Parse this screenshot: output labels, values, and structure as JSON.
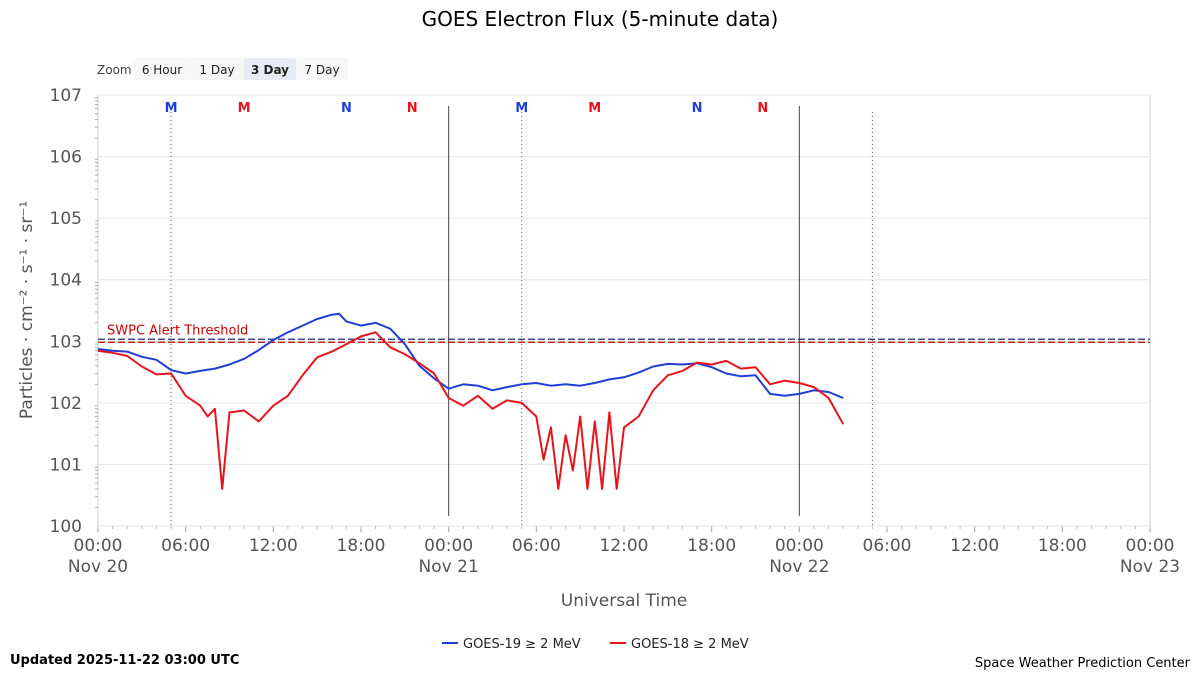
{
  "chart_data": {
    "type": "line",
    "title": "GOES Electron Flux (5-minute data)",
    "xlabel": "Universal Time",
    "ylabel": "Particles · cm⁻² · s⁻¹ · sr⁻¹",
    "y_scale": "log",
    "ylim": [
      1,
      10000000
    ],
    "y_ticks": [
      {
        "value": 1,
        "base": "10",
        "exp": "0"
      },
      {
        "value": 10,
        "base": "10",
        "exp": "1"
      },
      {
        "value": 100,
        "base": "10",
        "exp": "2"
      },
      {
        "value": 1000,
        "base": "10",
        "exp": "3"
      },
      {
        "value": 10000,
        "base": "10",
        "exp": "4"
      },
      {
        "value": 100000,
        "base": "10",
        "exp": "5"
      },
      {
        "value": 1000000,
        "base": "10",
        "exp": "6"
      },
      {
        "value": 10000000,
        "base": "10",
        "exp": "7"
      }
    ],
    "xlim": [
      "2025-11-20 00:00",
      "2025-11-23 00:00"
    ],
    "x_ticks": [
      {
        "t": "2025-11-20 00:00",
        "time": "00:00",
        "date": "Nov 20"
      },
      {
        "t": "2025-11-20 06:00",
        "time": "06:00",
        "date": ""
      },
      {
        "t": "2025-11-20 12:00",
        "time": "12:00",
        "date": ""
      },
      {
        "t": "2025-11-20 18:00",
        "time": "18:00",
        "date": ""
      },
      {
        "t": "2025-11-21 00:00",
        "time": "00:00",
        "date": "Nov 21"
      },
      {
        "t": "2025-11-21 06:00",
        "time": "06:00",
        "date": ""
      },
      {
        "t": "2025-11-21 12:00",
        "time": "12:00",
        "date": ""
      },
      {
        "t": "2025-11-21 18:00",
        "time": "18:00",
        "date": ""
      },
      {
        "t": "2025-11-22 00:00",
        "time": "00:00",
        "date": "Nov 22"
      },
      {
        "t": "2025-11-22 06:00",
        "time": "06:00",
        "date": ""
      },
      {
        "t": "2025-11-22 12:00",
        "time": "12:00",
        "date": ""
      },
      {
        "t": "2025-11-22 18:00",
        "time": "18:00",
        "date": ""
      },
      {
        "t": "2025-11-23 00:00",
        "time": "00:00",
        "date": "Nov 23"
      }
    ],
    "day_lines": [
      "2025-11-21 00:00",
      "2025-11-22 00:00"
    ],
    "dotted_lines": [
      "2025-11-20 05:00",
      "2025-11-21 05:00",
      "2025-11-22 05:00"
    ],
    "markers": [
      {
        "t": "2025-11-20 05:00",
        "label": "M",
        "color": "#1f3fd6"
      },
      {
        "t": "2025-11-20 10:00",
        "label": "M",
        "color": "#e8141c"
      },
      {
        "t": "2025-11-20 17:00",
        "label": "N",
        "color": "#1f3fd6"
      },
      {
        "t": "2025-11-20 21:30",
        "label": "N",
        "color": "#e8141c"
      },
      {
        "t": "2025-11-21 05:00",
        "label": "M",
        "color": "#1f3fd6"
      },
      {
        "t": "2025-11-21 10:00",
        "label": "M",
        "color": "#e8141c"
      },
      {
        "t": "2025-11-21 17:00",
        "label": "N",
        "color": "#1f3fd6"
      },
      {
        "t": "2025-11-21 21:30",
        "label": "N",
        "color": "#e8141c"
      }
    ],
    "threshold": {
      "value": 1000,
      "label": "SWPC Alert Threshold",
      "color": "#cc0000",
      "color2": "#1b2a80"
    },
    "series": [
      {
        "name": "GOES-19 ≥ 2 MeV",
        "color": "#1f3fd6",
        "points": [
          [
            "2025-11-20 00:00",
            750
          ],
          [
            "2025-11-20 01:00",
            700
          ],
          [
            "2025-11-20 02:00",
            680
          ],
          [
            "2025-11-20 03:00",
            560
          ],
          [
            "2025-11-20 04:00",
            500
          ],
          [
            "2025-11-20 05:00",
            340
          ],
          [
            "2025-11-20 06:00",
            300
          ],
          [
            "2025-11-20 07:00",
            330
          ],
          [
            "2025-11-20 08:00",
            360
          ],
          [
            "2025-11-20 09:00",
            420
          ],
          [
            "2025-11-20 10:00",
            520
          ],
          [
            "2025-11-20 11:00",
            720
          ],
          [
            "2025-11-20 12:00",
            1050
          ],
          [
            "2025-11-20 13:00",
            1400
          ],
          [
            "2025-11-20 14:00",
            1800
          ],
          [
            "2025-11-20 15:00",
            2300
          ],
          [
            "2025-11-20 16:00",
            2700
          ],
          [
            "2025-11-20 16:30",
            2800
          ],
          [
            "2025-11-20 17:00",
            2100
          ],
          [
            "2025-11-20 18:00",
            1800
          ],
          [
            "2025-11-20 19:00",
            2000
          ],
          [
            "2025-11-20 20:00",
            1600
          ],
          [
            "2025-11-20 21:00",
            900
          ],
          [
            "2025-11-20 22:00",
            400
          ],
          [
            "2025-11-20 23:00",
            250
          ],
          [
            "2025-11-21 00:00",
            170
          ],
          [
            "2025-11-21 01:00",
            200
          ],
          [
            "2025-11-21 02:00",
            190
          ],
          [
            "2025-11-21 03:00",
            160
          ],
          [
            "2025-11-21 04:00",
            180
          ],
          [
            "2025-11-21 05:00",
            200
          ],
          [
            "2025-11-21 06:00",
            210
          ],
          [
            "2025-11-21 07:00",
            190
          ],
          [
            "2025-11-21 08:00",
            200
          ],
          [
            "2025-11-21 09:00",
            190
          ],
          [
            "2025-11-21 10:00",
            210
          ],
          [
            "2025-11-21 11:00",
            240
          ],
          [
            "2025-11-21 12:00",
            260
          ],
          [
            "2025-11-21 13:00",
            310
          ],
          [
            "2025-11-21 14:00",
            390
          ],
          [
            "2025-11-21 15:00",
            430
          ],
          [
            "2025-11-21 16:00",
            420
          ],
          [
            "2025-11-21 17:00",
            440
          ],
          [
            "2025-11-21 18:00",
            380
          ],
          [
            "2025-11-21 19:00",
            300
          ],
          [
            "2025-11-21 20:00",
            270
          ],
          [
            "2025-11-21 21:00",
            280
          ],
          [
            "2025-11-21 22:00",
            140
          ],
          [
            "2025-11-21 23:00",
            130
          ],
          [
            "2025-11-22 00:00",
            140
          ],
          [
            "2025-11-22 01:00",
            160
          ],
          [
            "2025-11-22 02:00",
            150
          ],
          [
            "2025-11-22 03:00",
            120
          ]
        ]
      },
      {
        "name": "GOES-18 ≥ 2 MeV",
        "color": "#e8141c",
        "points": [
          [
            "2025-11-20 00:00",
            700
          ],
          [
            "2025-11-20 01:00",
            650
          ],
          [
            "2025-11-20 02:00",
            580
          ],
          [
            "2025-11-20 03:00",
            390
          ],
          [
            "2025-11-20 04:00",
            290
          ],
          [
            "2025-11-20 05:00",
            300
          ],
          [
            "2025-11-20 06:00",
            130
          ],
          [
            "2025-11-20 07:00",
            90
          ],
          [
            "2025-11-20 07:30",
            60
          ],
          [
            "2025-11-20 08:00",
            80
          ],
          [
            "2025-11-20 08:30",
            4
          ],
          [
            "2025-11-20 09:00",
            70
          ],
          [
            "2025-11-20 10:00",
            75
          ],
          [
            "2025-11-20 11:00",
            50
          ],
          [
            "2025-11-20 12:00",
            90
          ],
          [
            "2025-11-20 13:00",
            130
          ],
          [
            "2025-11-20 14:00",
            280
          ],
          [
            "2025-11-20 15:00",
            550
          ],
          [
            "2025-11-20 16:00",
            680
          ],
          [
            "2025-11-20 17:00",
            900
          ],
          [
            "2025-11-20 18:00",
            1200
          ],
          [
            "2025-11-20 19:00",
            1400
          ],
          [
            "2025-11-20 20:00",
            800
          ],
          [
            "2025-11-20 21:00",
            620
          ],
          [
            "2025-11-20 22:00",
            440
          ],
          [
            "2025-11-20 23:00",
            300
          ],
          [
            "2025-11-21 00:00",
            120
          ],
          [
            "2025-11-21 01:00",
            90
          ],
          [
            "2025-11-21 02:00",
            130
          ],
          [
            "2025-11-21 03:00",
            80
          ],
          [
            "2025-11-21 04:00",
            110
          ],
          [
            "2025-11-21 05:00",
            100
          ],
          [
            "2025-11-21 06:00",
            60
          ],
          [
            "2025-11-21 06:30",
            12
          ],
          [
            "2025-11-21 07:00",
            40
          ],
          [
            "2025-11-21 07:30",
            4
          ],
          [
            "2025-11-21 08:00",
            30
          ],
          [
            "2025-11-21 08:30",
            8
          ],
          [
            "2025-11-21 09:00",
            60
          ],
          [
            "2025-11-21 09:30",
            4
          ],
          [
            "2025-11-21 10:00",
            50
          ],
          [
            "2025-11-21 10:30",
            4
          ],
          [
            "2025-11-21 11:00",
            70
          ],
          [
            "2025-11-21 11:30",
            4
          ],
          [
            "2025-11-21 12:00",
            40
          ],
          [
            "2025-11-21 13:00",
            60
          ],
          [
            "2025-11-21 14:00",
            160
          ],
          [
            "2025-11-21 15:00",
            280
          ],
          [
            "2025-11-21 16:00",
            330
          ],
          [
            "2025-11-21 17:00",
            450
          ],
          [
            "2025-11-21 18:00",
            420
          ],
          [
            "2025-11-21 19:00",
            480
          ],
          [
            "2025-11-21 20:00",
            360
          ],
          [
            "2025-11-21 21:00",
            380
          ],
          [
            "2025-11-21 22:00",
            200
          ],
          [
            "2025-11-21 23:00",
            230
          ],
          [
            "2025-11-22 00:00",
            210
          ],
          [
            "2025-11-22 01:00",
            180
          ],
          [
            "2025-11-22 02:00",
            120
          ],
          [
            "2025-11-22 03:00",
            45
          ]
        ]
      }
    ]
  },
  "zoom": {
    "label": "Zoom",
    "buttons": [
      "6 Hour",
      "1 Day",
      "3 Day",
      "7 Day"
    ],
    "active": "3 Day"
  },
  "footer": {
    "updated": "Updated 2025-11-22 03:00 UTC",
    "credit": "Space Weather Prediction Center"
  }
}
